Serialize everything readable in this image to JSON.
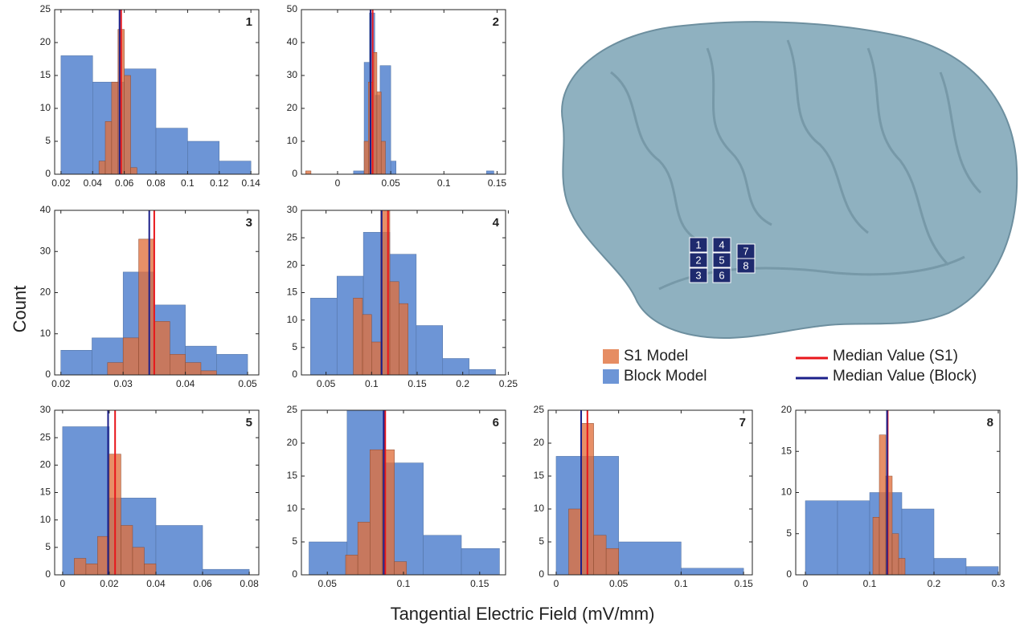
{
  "ylabel": "Count",
  "xlabel": "Tangential Electric Field (mV/mm)",
  "legend": {
    "series": [
      {
        "name": "Block Model",
        "color": "#6d95d6"
      },
      {
        "name": "S1 Model",
        "color": "#e0703c"
      }
    ],
    "medians": [
      {
        "name": "Median Value (S1)",
        "color": "#e8161b"
      },
      {
        "name": "Median Value (Block)",
        "color": "#1b1f8a"
      }
    ]
  },
  "brain": {
    "electrodes": [
      "1",
      "2",
      "3",
      "4",
      "5",
      "6",
      "7",
      "8"
    ]
  },
  "chart_data": [
    {
      "type": "histogram",
      "title": "1",
      "xlim": [
        0.016,
        0.145
      ],
      "xticks": [
        0.02,
        0.04,
        0.06,
        0.08,
        0.1,
        0.12,
        0.14
      ],
      "ylim": [
        0,
        25
      ],
      "yticks": [
        0,
        5,
        10,
        15,
        20,
        25
      ],
      "series": [
        {
          "bins": [
            0.02,
            0.04,
            0.06,
            0.08,
            0.1,
            0.12,
            0.14
          ],
          "values": [
            18,
            14,
            16,
            7,
            5,
            2
          ]
        },
        {
          "bins": [
            0.044,
            0.048,
            0.052,
            0.056,
            0.06,
            0.064,
            0.068
          ],
          "values": [
            2,
            8,
            14,
            22,
            15,
            1
          ]
        }
      ],
      "medians": [
        0.058,
        0.057
      ]
    },
    {
      "type": "histogram",
      "title": "2",
      "xlim": [
        -0.034,
        0.158
      ],
      "xticks": [
        0,
        0.05,
        0.1,
        0.15
      ],
      "ylim": [
        0,
        50
      ],
      "yticks": [
        0,
        10,
        20,
        30,
        40,
        50
      ],
      "series": [
        {
          "bins": [
            0.015,
            0.025,
            0.03,
            0.035,
            0.04,
            0.05,
            0.055,
            0.14,
            0.147
          ],
          "values": [
            1,
            34,
            49,
            24,
            33,
            4,
            0,
            1
          ]
        },
        {
          "bins": [
            -0.03,
            -0.025,
            0.025,
            0.029,
            0.033,
            0.037,
            0.041,
            0.045
          ],
          "values": [
            1,
            0,
            10,
            28,
            37,
            25,
            10
          ]
        }
      ],
      "medians": [
        0.033,
        0.031
      ]
    },
    {
      "type": "histogram",
      "title": "3",
      "xlim": [
        0.019,
        0.0518
      ],
      "xticks": [
        0.02,
        0.03,
        0.04,
        0.05
      ],
      "ylim": [
        0,
        40
      ],
      "yticks": [
        0,
        10,
        20,
        30,
        40
      ],
      "series": [
        {
          "bins": [
            0.02,
            0.025,
            0.03,
            0.035,
            0.04,
            0.045,
            0.05
          ],
          "values": [
            6,
            9,
            25,
            17,
            7,
            5
          ]
        },
        {
          "bins": [
            0.0275,
            0.03,
            0.0325,
            0.035,
            0.0375,
            0.04,
            0.0425,
            0.045
          ],
          "values": [
            3,
            9,
            33,
            13,
            5,
            3,
            1
          ]
        }
      ],
      "medians": [
        0.035,
        0.0342
      ]
    },
    {
      "type": "histogram",
      "title": "4",
      "xlim": [
        0.023,
        0.247
      ],
      "xticks": [
        0.05,
        0.1,
        0.15,
        0.2,
        0.25
      ],
      "ylim": [
        0,
        30
      ],
      "yticks": [
        0,
        5,
        10,
        15,
        20,
        25,
        30
      ],
      "series": [
        {
          "bins": [
            0.033,
            0.062,
            0.091,
            0.12,
            0.149,
            0.178,
            0.207,
            0.236
          ],
          "values": [
            14,
            18,
            26,
            22,
            9,
            3,
            1
          ]
        },
        {
          "bins": [
            0.08,
            0.09,
            0.1,
            0.11,
            0.12,
            0.13,
            0.14
          ],
          "values": [
            14,
            11,
            6,
            30,
            17,
            13
          ]
        }
      ],
      "medians": [
        0.118,
        0.111
      ]
    },
    {
      "type": "histogram",
      "title": "5",
      "xlim": [
        -0.0034,
        0.0841
      ],
      "xticks": [
        0,
        0.02,
        0.04,
        0.06,
        0.08
      ],
      "ylim": [
        0,
        30
      ],
      "yticks": [
        0,
        5,
        10,
        15,
        20,
        25,
        30
      ],
      "series": [
        {
          "bins": [
            0,
            0.02,
            0.04,
            0.06,
            0.08
          ],
          "values": [
            27,
            14,
            9,
            1
          ]
        },
        {
          "bins": [
            0.005,
            0.01,
            0.015,
            0.02,
            0.025,
            0.03,
            0.035,
            0.04
          ],
          "values": [
            3,
            2,
            7,
            22,
            9,
            5,
            2
          ]
        }
      ],
      "medians": [
        0.0225,
        0.0195
      ]
    },
    {
      "type": "histogram",
      "title": "6",
      "xlim": [
        0.033,
        0.167
      ],
      "xticks": [
        0.05,
        0.1,
        0.15
      ],
      "ylim": [
        0,
        25
      ],
      "yticks": [
        0,
        5,
        10,
        15,
        20,
        25
      ],
      "series": [
        {
          "bins": [
            0.038,
            0.063,
            0.088,
            0.113,
            0.138,
            0.163
          ],
          "values": [
            5,
            25,
            17,
            6,
            4
          ]
        },
        {
          "bins": [
            0.062,
            0.07,
            0.078,
            0.086,
            0.094,
            0.102
          ],
          "values": [
            3,
            8,
            19,
            19,
            2
          ]
        }
      ],
      "medians": [
        0.088,
        0.087
      ]
    },
    {
      "type": "histogram",
      "title": "7",
      "xlim": [
        -0.0064,
        0.157
      ],
      "xticks": [
        0,
        0.05,
        0.1,
        0.15
      ],
      "ylim": [
        0,
        25
      ],
      "yticks": [
        0,
        5,
        10,
        15,
        20,
        25
      ],
      "series": [
        {
          "bins": [
            0,
            0.025,
            0.05,
            0.1,
            0.15
          ],
          "values": [
            18,
            18,
            5,
            1
          ]
        },
        {
          "bins": [
            0.01,
            0.02,
            0.03,
            0.04,
            0.05
          ],
          "values": [
            10,
            23,
            6,
            4
          ]
        }
      ],
      "medians": [
        0.025,
        0.02
      ]
    },
    {
      "type": "histogram",
      "title": "8",
      "xlim": [
        -0.015,
        0.3025
      ],
      "xticks": [
        0,
        0.1,
        0.2,
        0.3
      ],
      "ylim": [
        0,
        20
      ],
      "yticks": [
        0,
        5,
        10,
        15,
        20
      ],
      "series": [
        {
          "bins": [
            0,
            0.05,
            0.1,
            0.15,
            0.2,
            0.25,
            0.3
          ],
          "values": [
            9,
            9,
            10,
            8,
            2,
            1
          ]
        },
        {
          "bins": [
            0.105,
            0.115,
            0.125,
            0.135,
            0.145,
            0.155
          ],
          "values": [
            7,
            17,
            12,
            5,
            2
          ]
        }
      ],
      "medians": [
        0.128,
        0.127
      ]
    }
  ]
}
